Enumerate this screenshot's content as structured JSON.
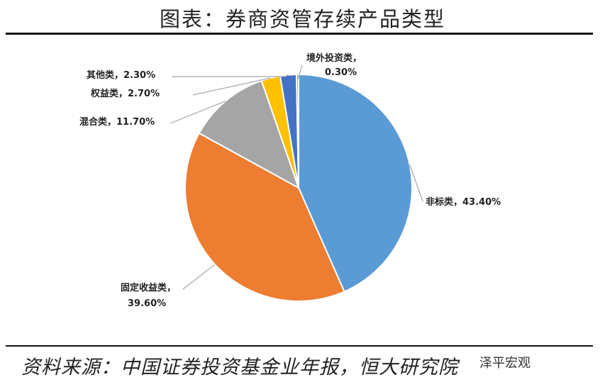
{
  "header": {
    "title": "图表：券商资管存续产品类型"
  },
  "footer": {
    "source": "资料来源：中国证券投资基金业年报，恒大研究院"
  },
  "watermark": "泽平宏观",
  "chart_data": {
    "type": "pie",
    "title": "",
    "slices": [
      {
        "name": "非标类",
        "label": "非标类，43.40%",
        "value": 43.4,
        "color": "#5B9BD5"
      },
      {
        "name": "固定收益类",
        "label_lines": [
          "固定收益类，",
          "39.60%"
        ],
        "value": 39.6,
        "color": "#ED7D31"
      },
      {
        "name": "混合类",
        "label": "混合类，11.70%",
        "value": 11.7,
        "color": "#A5A5A5"
      },
      {
        "name": "权益类",
        "label": "权益类，2.70%",
        "value": 2.7,
        "color": "#FFC000"
      },
      {
        "name": "其他类",
        "label": "其他类，2.30%",
        "value": 2.3,
        "color": "#4472C4"
      },
      {
        "name": "境外投资类",
        "label_lines": [
          "境外投资类，",
          "0.30%"
        ],
        "value": 0.3,
        "color": "#70AD47"
      }
    ]
  }
}
